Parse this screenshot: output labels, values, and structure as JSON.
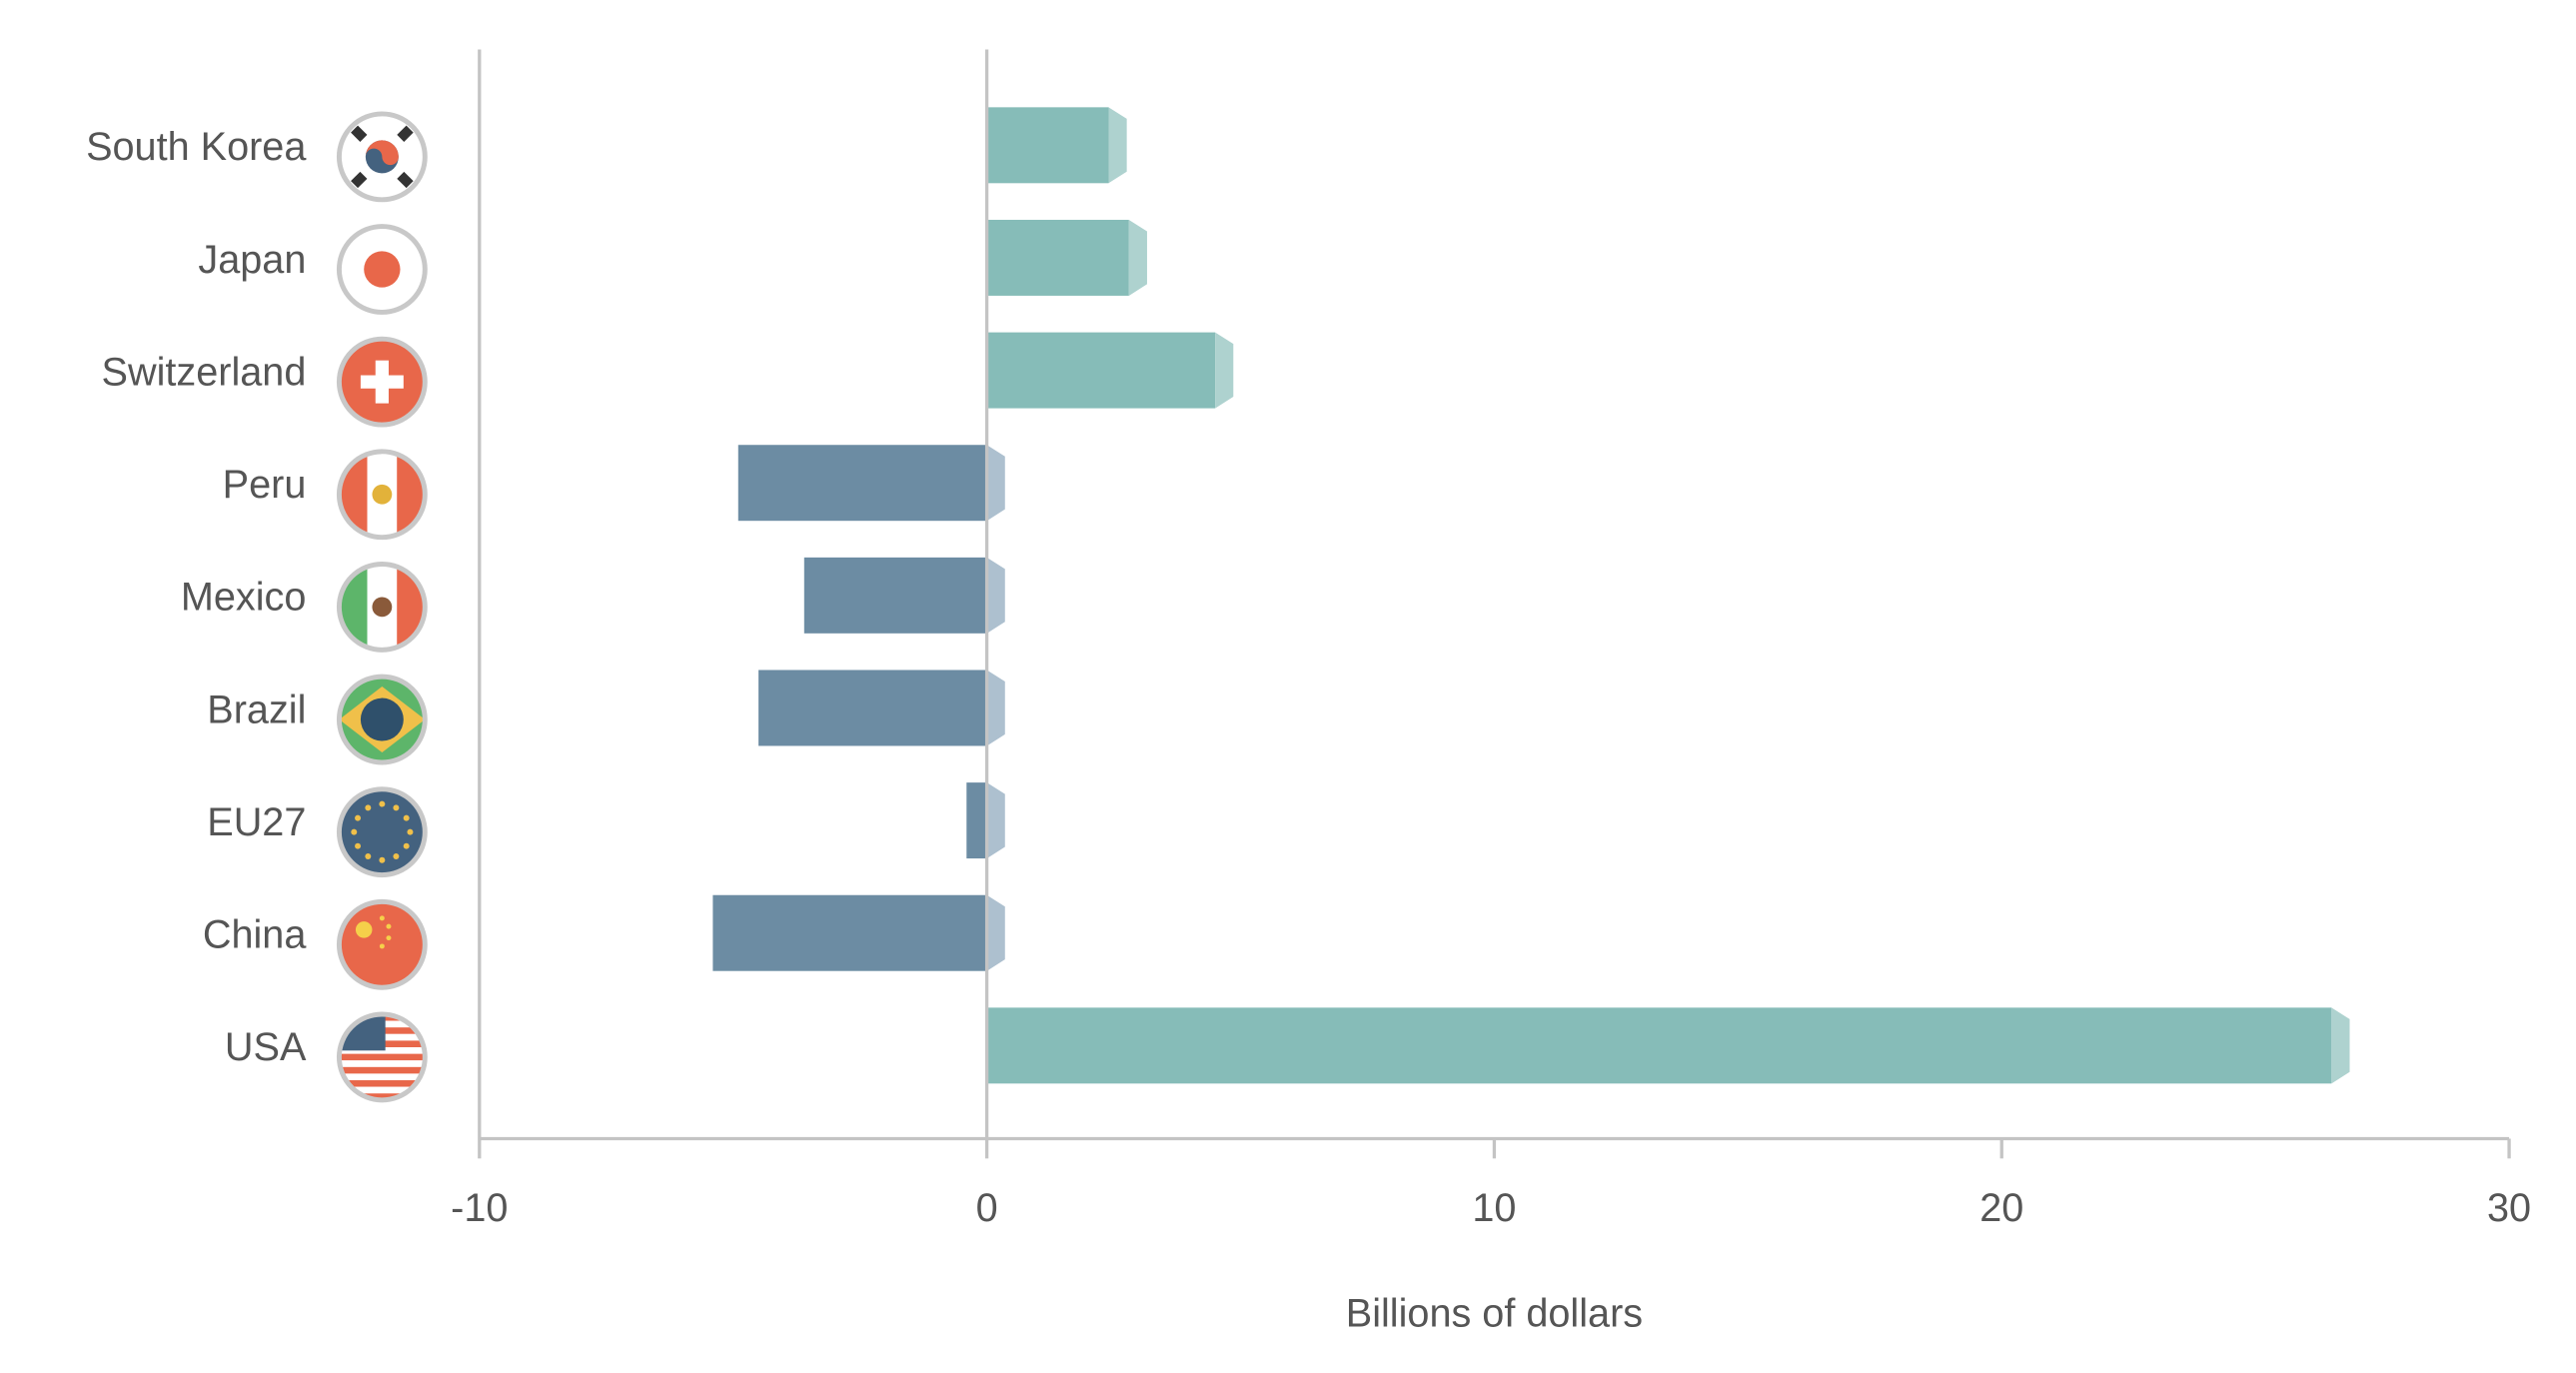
{
  "chart_data": {
    "type": "bar",
    "orientation": "horizontal",
    "categories": [
      "South Korea",
      "Japan",
      "Switzerland",
      "Peru",
      "Mexico",
      "Brazil",
      "EU27",
      "China",
      "USA"
    ],
    "flag_icons": [
      "south-korea-flag-icon",
      "japan-flag-icon",
      "switzerland-flag-icon",
      "peru-flag-icon",
      "mexico-flag-icon",
      "brazil-flag-icon",
      "eu-flag-icon",
      "china-flag-icon",
      "usa-flag-icon"
    ],
    "values": [
      2.4,
      2.8,
      4.5,
      -4.9,
      -3.6,
      -4.5,
      -0.4,
      -5.4,
      26.5
    ],
    "xlabel": "Billions of dollars",
    "ylabel": "",
    "xlim": [
      -10,
      30
    ],
    "xticks": [
      "-10",
      "0",
      "10",
      "20",
      "30"
    ],
    "xtick_values": [
      -10,
      0,
      10,
      20,
      30
    ],
    "grid": false,
    "colors": {
      "positive": "#86bcb8",
      "positive_cap": "#aed2cf",
      "negative": "#6c8ca3",
      "negative_cap": "#adc0cf",
      "axis": "#c4c4c4",
      "text": "#555555"
    }
  }
}
